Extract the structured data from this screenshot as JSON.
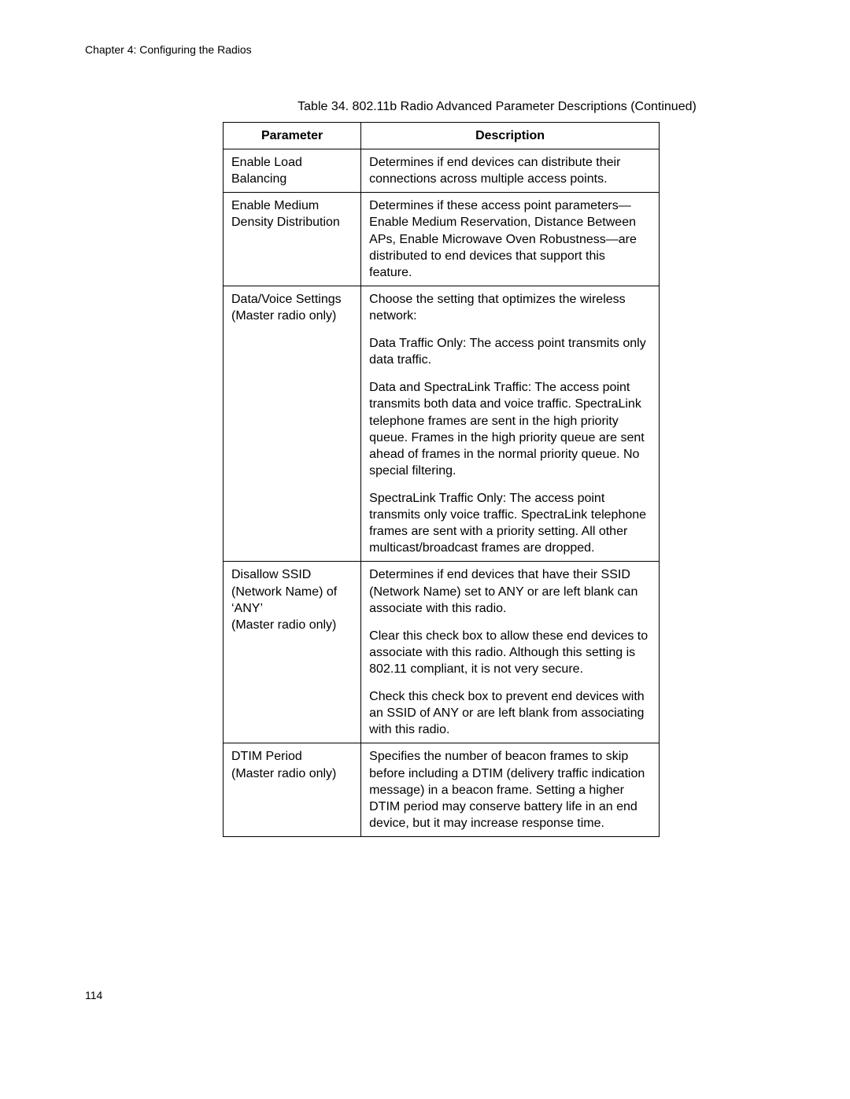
{
  "header": {
    "chapter": "Chapter 4: Configuring the Radios"
  },
  "page_number": "114",
  "table": {
    "caption": "Table 34. 802.11b Radio Advanced Parameter Descriptions (Continued)",
    "columns": [
      "Parameter",
      "Description"
    ],
    "rows": [
      {
        "param": "Enable Load Balancing",
        "desc": [
          "Determines if end devices can distribute their connections across multiple access points."
        ]
      },
      {
        "param": "Enable Medium Density Distribution",
        "desc": [
          "Determines if these access point parameters—Enable Medium Reservation, Distance Between APs, Enable Microwave Oven Robustness—are distributed to end devices that support this feature."
        ]
      },
      {
        "param": "Data/Voice Settings\n(Master radio only)",
        "desc": [
          "Choose the setting that optimizes the wireless network:",
          "Data Traffic Only: The access point transmits only data traffic.",
          "Data and SpectraLink Traffic: The access point transmits both data and voice traffic. SpectraLink telephone frames are sent in the high priority queue. Frames in the high priority queue are sent ahead of frames in the normal priority queue. No special filtering.",
          "SpectraLink Traffic Only: The access point transmits only voice traffic. SpectraLink telephone frames are sent with a priority setting. All other multicast/broadcast frames are dropped."
        ]
      },
      {
        "param": "Disallow SSID (Network Name) of ‘ANY’\n(Master radio only)",
        "desc": [
          "Determines if end devices that have their SSID (Network Name) set to ANY or are left blank can associate with this radio.",
          "Clear this check box to allow these end devices to associate with this radio. Although this setting is 802.11 compliant, it is not very secure.",
          "Check this check box to prevent end devices with an SSID of ANY or are left blank from associating with this radio."
        ]
      },
      {
        "param": "DTIM Period\n(Master radio only)",
        "desc": [
          "Specifies the number of beacon frames to skip before including a DTIM (delivery traffic indication message) in a beacon frame. Setting a higher DTIM period may conserve battery life in an end device, but it may increase response time."
        ]
      }
    ]
  }
}
